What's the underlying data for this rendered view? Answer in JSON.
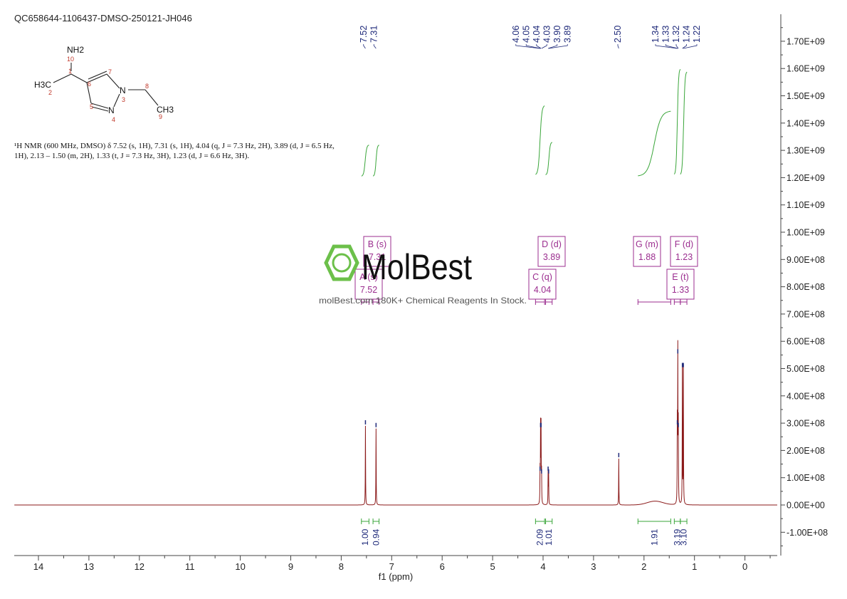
{
  "header": {
    "sample_id": "QC658644-1106437-DMSO-250121-JH046"
  },
  "description": {
    "line1": "¹H NMR (600 MHz, DMSO) δ 7.52 (s, 1H), 7.31 (s, 1H), 4.04 (q, J = 7.3 Hz, 2H), 3.89 (d, J = 6.5 Hz,",
    "line2": "1H), 2.13 – 1.50 (m, 2H), 1.33 (t, J = 7.3 Hz, 3H), 1.23 (d, J = 6.6 Hz, 3H)."
  },
  "structure": {
    "labels": [
      "NH2",
      "H3C",
      "CH3",
      "N",
      "N"
    ],
    "atom_numbers": [
      "10",
      "1",
      "2",
      "6",
      "7",
      "5",
      "3",
      "4",
      "8",
      "9"
    ]
  },
  "watermark": {
    "brand": "MolBest",
    "tagline": "molBest.com 180K+ Chemical Reagents In Stock."
  },
  "colors": {
    "spectrum": "#8b1a1a",
    "integral": "#3aa63a",
    "peak_label": "#1f2a7a",
    "multiplet_box": "#9b2d8f",
    "watermark_green": "#6cc04a"
  },
  "chart_data": {
    "type": "line",
    "title": "",
    "xlabel": "f1 (ppm)",
    "ylabel": "",
    "xlim": [
      14.5,
      -0.65
    ],
    "ylim": [
      -180000000,
      1800000000
    ],
    "x_axis_reversed": true,
    "x_ticks": [
      14,
      13,
      12,
      11,
      10,
      9,
      8,
      7,
      6,
      5,
      4,
      3,
      2,
      1,
      0
    ],
    "y_ticks": [
      {
        "value": 1700000000,
        "label": "1.70E+09"
      },
      {
        "value": 1600000000,
        "label": "1.60E+09"
      },
      {
        "value": 1500000000,
        "label": "1.50E+09"
      },
      {
        "value": 1400000000,
        "label": "1.40E+09"
      },
      {
        "value": 1300000000,
        "label": "1.30E+09"
      },
      {
        "value": 1200000000,
        "label": "1.20E+09"
      },
      {
        "value": 1100000000,
        "label": "1.10E+09"
      },
      {
        "value": 1000000000,
        "label": "1.00E+09"
      },
      {
        "value": 900000000,
        "label": "9.00E+08"
      },
      {
        "value": 800000000,
        "label": "8.00E+08"
      },
      {
        "value": 700000000,
        "label": "7.00E+08"
      },
      {
        "value": 600000000,
        "label": "6.00E+08"
      },
      {
        "value": 500000000,
        "label": "5.00E+08"
      },
      {
        "value": 400000000,
        "label": "4.00E+08"
      },
      {
        "value": 300000000,
        "label": "3.00E+08"
      },
      {
        "value": 200000000,
        "label": "2.00E+08"
      },
      {
        "value": 100000000,
        "label": "1.00E+08"
      },
      {
        "value": 0,
        "label": "0.00E+00"
      },
      {
        "value": -100000000,
        "label": "-1.00E+08"
      }
    ],
    "peaks": [
      {
        "ppm": 7.52,
        "height": 290000000
      },
      {
        "ppm": 7.31,
        "height": 280000000
      },
      {
        "ppm": 4.06,
        "height": 120000000
      },
      {
        "ppm": 4.05,
        "height": 280000000
      },
      {
        "ppm": 4.04,
        "height": 280000000
      },
      {
        "ppm": 4.03,
        "height": 110000000
      },
      {
        "ppm": 3.9,
        "height": 120000000
      },
      {
        "ppm": 3.89,
        "height": 110000000
      },
      {
        "ppm": 2.5,
        "height": 170000000
      },
      {
        "ppm": 1.34,
        "height": 290000000
      },
      {
        "ppm": 1.33,
        "height": 550000000
      },
      {
        "ppm": 1.32,
        "height": 280000000
      },
      {
        "ppm": 1.24,
        "height": 500000000
      },
      {
        "ppm": 1.22,
        "height": 500000000
      }
    ],
    "broad_hump": {
      "center": 1.78,
      "height": 14000000,
      "width": 0.22
    },
    "peak_labels": [
      {
        "group": "left",
        "values": [
          "7.52",
          "7.31"
        ],
        "ppm": [
          7.52,
          7.31
        ]
      },
      {
        "group": "mid",
        "values": [
          "4.06",
          "4.05",
          "4.04",
          "4.03",
          "3.90",
          "3.89"
        ],
        "ppm": [
          4.06,
          4.05,
          4.04,
          4.03,
          3.9,
          3.89
        ]
      },
      {
        "group": "solvent",
        "values": [
          "2.50"
        ],
        "ppm": [
          2.5
        ]
      },
      {
        "group": "right",
        "values": [
          "1.34",
          "1.33",
          "1.32",
          "1.24",
          "1.22"
        ],
        "ppm": [
          1.34,
          1.33,
          1.32,
          1.24,
          1.22
        ]
      }
    ],
    "integrals": [
      {
        "from": 7.6,
        "to": 7.45,
        "value": "1.00",
        "y_from": 1205000000,
        "y_to": 1320000000
      },
      {
        "from": 7.37,
        "to": 7.25,
        "value": "0.94",
        "y_from": 1205000000,
        "y_to": 1320000000
      },
      {
        "from": 4.15,
        "to": 3.97,
        "value": "2.09",
        "y_from": 1210000000,
        "y_to": 1465000000
      },
      {
        "from": 3.95,
        "to": 3.82,
        "value": "1.01",
        "y_from": 1210000000,
        "y_to": 1330000000
      },
      {
        "from": 2.12,
        "to": 1.47,
        "value": "1.91",
        "y_from": 1205000000,
        "y_to": 1445000000
      },
      {
        "from": 1.4,
        "to": 1.28,
        "value": "3.19",
        "y_from": 1210000000,
        "y_to": 1600000000
      },
      {
        "from": 1.28,
        "to": 1.15,
        "value": "3.10",
        "y_from": 1210000000,
        "y_to": 1590000000
      }
    ],
    "multiplets": [
      {
        "label": "A (s)",
        "value": "7.52"
      },
      {
        "label": "B (s)",
        "value": "7.31"
      },
      {
        "label": "C (q)",
        "value": "4.04"
      },
      {
        "label": "D (d)",
        "value": "3.89"
      },
      {
        "label": "E (t)",
        "value": "1.33"
      },
      {
        "label": "F (d)",
        "value": "1.23"
      },
      {
        "label": "G (m)",
        "value": "1.88"
      }
    ]
  }
}
